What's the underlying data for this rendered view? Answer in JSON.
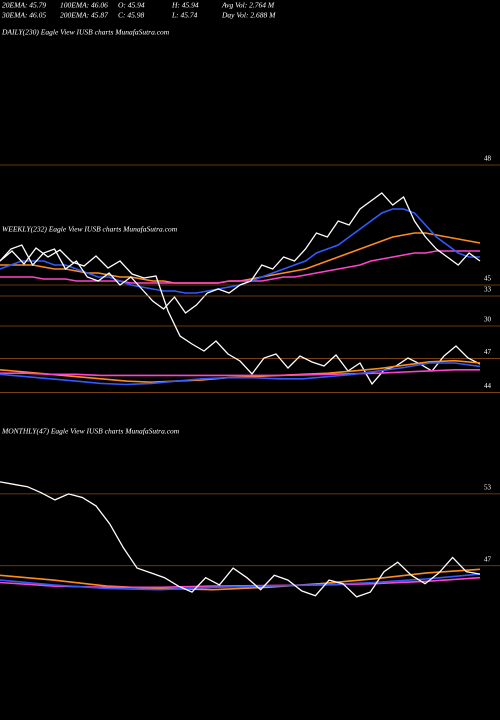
{
  "header": {
    "stats": [
      [
        "20EMA: 45.79",
        "100EMA: 46.06",
        "O: 45.94",
        "H: 45.94",
        "Avg Vol: 2.764  M"
      ],
      [
        "30EMA: 46.05",
        "200EMA: 45.87",
        "C: 45.98",
        "L: 45.74",
        "Day Vol: 2.688  M"
      ]
    ]
  },
  "chart_data": [
    {
      "type": "line",
      "title": "DAILY(230) Eagle  View  IUSB charts MunafaSutra.com",
      "ylim": [
        43.5,
        49.0
      ],
      "yticks": [
        48,
        45
      ],
      "series": [
        {
          "color": "#ff8c1a",
          "values": [
            45.5,
            45.5,
            45.5,
            45.5,
            45.45,
            45.4,
            45.4,
            45.35,
            45.3,
            45.3,
            45.25,
            45.2,
            45.2,
            45.15,
            45.1,
            45.1,
            45.05,
            45.05,
            45.05,
            45.05,
            45.05,
            45.1,
            45.1,
            45.15,
            45.2,
            45.25,
            45.3,
            45.35,
            45.4,
            45.5,
            45.6,
            45.7,
            45.8,
            45.9,
            46.0,
            46.1,
            46.2,
            46.25,
            46.3,
            46.3,
            46.25,
            46.2,
            46.15,
            46.1,
            46.05
          ]
        },
        {
          "color": "#ff44cc",
          "values": [
            45.2,
            45.2,
            45.2,
            45.2,
            45.15,
            45.15,
            45.15,
            45.1,
            45.1,
            45.1,
            45.1,
            45.1,
            45.05,
            45.05,
            45.05,
            45.05,
            45.05,
            45.05,
            45.05,
            45.05,
            45.05,
            45.1,
            45.1,
            45.1,
            45.1,
            45.15,
            45.2,
            45.2,
            45.25,
            45.3,
            45.35,
            45.4,
            45.45,
            45.5,
            45.6,
            45.65,
            45.7,
            45.75,
            45.8,
            45.8,
            45.85,
            45.85,
            45.85,
            45.85,
            45.85
          ]
        },
        {
          "color": "#2f5bff",
          "values": [
            45.4,
            45.5,
            45.6,
            45.6,
            45.6,
            45.5,
            45.5,
            45.4,
            45.3,
            45.2,
            45.2,
            45.1,
            45.0,
            44.95,
            44.9,
            44.85,
            44.85,
            44.8,
            44.8,
            44.85,
            44.9,
            44.95,
            45.0,
            45.1,
            45.2,
            45.3,
            45.4,
            45.5,
            45.6,
            45.8,
            45.9,
            46.0,
            46.2,
            46.4,
            46.6,
            46.8,
            46.9,
            46.9,
            46.8,
            46.5,
            46.2,
            46.0,
            45.8,
            45.7,
            45.7
          ]
        },
        {
          "color": "#ffffff",
          "values": [
            45.6,
            45.9,
            46.0,
            45.5,
            45.8,
            45.9,
            45.4,
            45.6,
            45.2,
            45.1,
            45.3,
            45.0,
            45.2,
            44.9,
            44.6,
            44.4,
            44.7,
            44.3,
            44.5,
            44.8,
            44.9,
            44.8,
            45.0,
            45.1,
            45.5,
            45.4,
            45.7,
            45.6,
            45.9,
            46.3,
            46.2,
            46.6,
            46.5,
            46.9,
            47.1,
            47.3,
            47.0,
            47.2,
            46.6,
            46.2,
            45.9,
            45.7,
            45.5,
            45.8,
            45.6
          ]
        }
      ]
    },
    {
      "type": "line",
      "title": "WEEKLY(232) Eagle  View  IUSB charts MunafaSutra.com",
      "ylim": [
        22,
        40
      ],
      "yticks": [
        33,
        30
      ],
      "y2lim": [
        42.8,
        58.7
      ],
      "y2ticks": [
        47,
        44
      ],
      "series": [
        {
          "color": "#ffffff",
          "values": [
            36.5,
            37.5,
            36.2,
            37.8,
            36.9,
            37.6,
            36.4,
            36.0,
            37.0,
            35.8,
            36.5,
            35.2,
            34.8,
            35.0,
            31.5,
            29.0,
            28.2,
            27.5,
            28.5,
            27.2,
            26.5,
            25.2,
            26.8,
            27.2,
            25.8,
            27.0,
            26.4,
            26.0,
            27.1,
            25.5,
            26.3,
            24.2,
            25.6,
            26.0,
            26.8,
            26.2,
            25.5,
            27.0,
            28.0,
            26.8,
            26.2
          ]
        },
        {
          "color": "#ff8c1a",
          "axis": "y2",
          "values": [
            46.0,
            45.8,
            45.6,
            45.4,
            45.2,
            45.0,
            44.9,
            45.0,
            45.1,
            45.3,
            45.4,
            45.5,
            45.6,
            45.7,
            45.9,
            46.1,
            46.4,
            46.7,
            46.8,
            46.6
          ]
        },
        {
          "color": "#ff44cc",
          "axis": "y2",
          "values": [
            45.7,
            45.7,
            45.6,
            45.6,
            45.5,
            45.5,
            45.5,
            45.5,
            45.5,
            45.5,
            45.5,
            45.5,
            45.55,
            45.6,
            45.65,
            45.7,
            45.8,
            45.9,
            46.0,
            46.0
          ]
        },
        {
          "color": "#2f5bff",
          "axis": "y2",
          "values": [
            45.6,
            45.4,
            45.2,
            45.0,
            44.8,
            44.7,
            44.8,
            45.0,
            45.2,
            45.3,
            45.3,
            45.2,
            45.2,
            45.4,
            45.6,
            45.9,
            46.2,
            46.6,
            46.6,
            46.3
          ]
        }
      ]
    },
    {
      "type": "line",
      "title": "MONTHLY(47) Eagle  View  IUSB charts MunafaSutra.com",
      "ylim": [
        40.8,
        57.5
      ],
      "yticks": [
        53,
        47
      ],
      "series": [
        {
          "color": "#ff8c1a",
          "values": [
            46.2,
            45.8,
            45.3,
            45.1,
            45.0,
            45.2,
            45.5,
            45.9,
            46.4,
            46.7
          ]
        },
        {
          "color": "#ff44cc",
          "values": [
            45.6,
            45.3,
            45.2,
            45.2,
            45.3,
            45.35,
            45.4,
            45.5,
            45.7,
            46.0
          ]
        },
        {
          "color": "#2f5bff",
          "values": [
            45.8,
            45.4,
            45.1,
            45.0,
            45.2,
            45.3,
            45.4,
            45.6,
            45.9,
            46.3
          ]
        },
        {
          "color": "#ffffff",
          "values": [
            54,
            53.8,
            53.6,
            53.1,
            52.5,
            53.0,
            52.7,
            52.0,
            50.5,
            48.5,
            46.8,
            46.4,
            46.0,
            45.3,
            44.8,
            46.0,
            45.4,
            46.8,
            46.0,
            45.0,
            46.2,
            45.8,
            44.9,
            44.5,
            45.8,
            45.5,
            44.4,
            44.8,
            46.5,
            47.3,
            46.2,
            45.5,
            46.4,
            47.7,
            46.5,
            46.3
          ]
        }
      ]
    }
  ]
}
